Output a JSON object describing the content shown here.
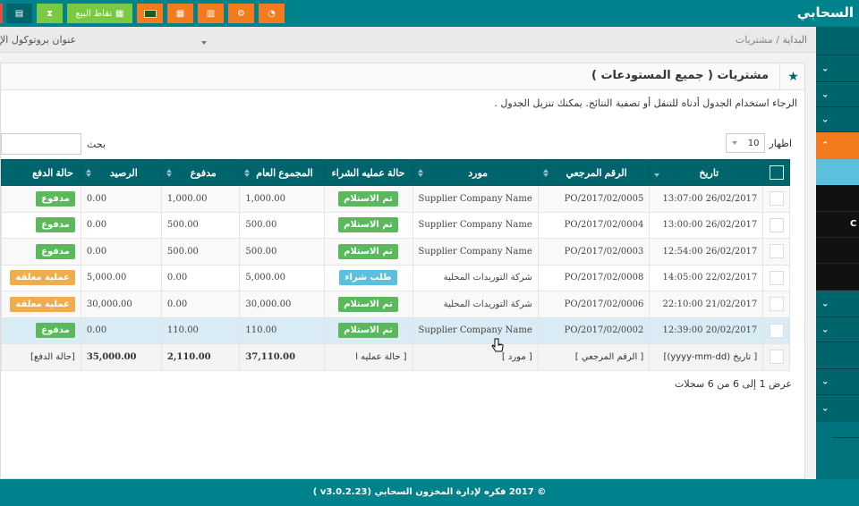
{
  "header": {
    "brand": "السحابي",
    "pos_label": "نقاط البيع",
    "icons": [
      "alert-icon",
      "list-icon",
      "hourglass-icon",
      "pos-icon",
      "money-icon",
      "calendar-icon",
      "calculator-icon",
      "cogs-icon",
      "dashboard-icon"
    ]
  },
  "breadcrumb": {
    "home": "البداية",
    "sep": "/",
    "current": "مشتريات"
  },
  "protocol_label": "عنوان بروتوكول الإ",
  "panel": {
    "title": "مشتريات ( جميع المستودعات )",
    "help": "الرجاء استخدام الجدول أدناه للتنقل أو تصفية النتائج. يمكنك تنزيل الجدول ."
  },
  "controls": {
    "show_label": "اظهار",
    "page_size": "10",
    "search_label": "بحث",
    "search_value": ""
  },
  "table": {
    "columns": [
      "تاريخ",
      "الرقم المرجعي",
      "مورد",
      "حالة عمليه الشراء",
      "المجموع العام",
      "مدفوع",
      "الرصيد",
      "حالة الدفع"
    ],
    "rows": [
      {
        "date": "26/02/2017 13:07:00",
        "ref": "PO/2017/02/0005",
        "supplier": "Supplier Company Name",
        "status": "تم الاستلام",
        "status_color": "#5cb85c",
        "total": "1,000.00",
        "paid": "1,000.00",
        "balance": "0.00",
        "payment": "مدفوع",
        "payment_color": "#5cb85c"
      },
      {
        "date": "26/02/2017 13:00:00",
        "ref": "PO/2017/02/0004",
        "supplier": "Supplier Company Name",
        "status": "تم الاستلام",
        "status_color": "#5cb85c",
        "total": "500.00",
        "paid": "500.00",
        "balance": "0.00",
        "payment": "مدفوع",
        "payment_color": "#5cb85c"
      },
      {
        "date": "26/02/2017 12:54:00",
        "ref": "PO/2017/02/0003",
        "supplier": "Supplier Company Name",
        "status": "تم الاستلام",
        "status_color": "#5cb85c",
        "total": "500.00",
        "paid": "500.00",
        "balance": "0.00",
        "payment": "مدفوع",
        "payment_color": "#5cb85c"
      },
      {
        "date": "22/02/2017 14:05:00",
        "ref": "PO/2017/02/0008",
        "supplier": "شركة التوريدات المحلية",
        "status": "طلب شراء",
        "status_color": "#5bc0de",
        "total": "5,000.00",
        "paid": "0.00",
        "balance": "5,000.00",
        "payment": "عملية معلقة",
        "payment_color": "#f0ad4e"
      },
      {
        "date": "21/02/2017 22:10:00",
        "ref": "PO/2017/02/0006",
        "supplier": "شركة التوريدات المحلية",
        "status": "تم الاستلام",
        "status_color": "#5cb85c",
        "total": "30,000.00",
        "paid": "0.00",
        "balance": "30,000.00",
        "payment": "عملية معلقة",
        "payment_color": "#f0ad4e"
      },
      {
        "date": "20/02/2017 12:39:00",
        "ref": "PO/2017/02/0002",
        "supplier": "Supplier Company Name",
        "status": "تم الاستلام",
        "status_color": "#5cb85c",
        "total": "110.00",
        "paid": "110.00",
        "balance": "0.00",
        "payment": "مدفوع",
        "payment_color": "#5cb85c"
      }
    ],
    "footer": {
      "date": "[ تاريخ  (yyyy-mm-dd)]",
      "ref": "[      الرقم المرجعي      ]",
      "supplier": "[ مورد  ]",
      "status": "[      حالة عمليه ا",
      "total": "37,110.00",
      "paid": "2,110.00",
      "balance": "35,000.00",
      "payment": "[حالة الدفع]"
    }
  },
  "info": "عرض 1 إلى 6 من 6 سجلات",
  "sidebar": {
    "visible_text": "C"
  },
  "footer": {
    "text": "© 2017 فكره لإدارة المخزون السحابي (v3.0.2.23 )"
  }
}
